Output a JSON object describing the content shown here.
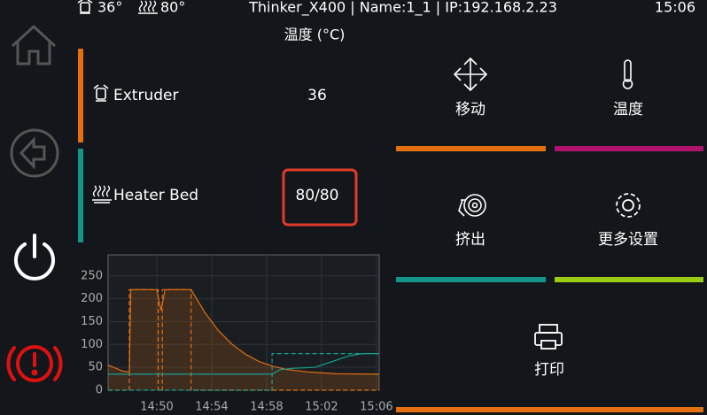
{
  "status_bar": {
    "extruder_temp": "36°",
    "bed_temp": "80°",
    "printer_info": "Thinker_X400 | Name:1_1 | IP:192.168.2.23",
    "time": "15:06"
  },
  "panel": {
    "title": "温度 (°C)",
    "heaters": [
      {
        "name": "Extruder",
        "value": "36",
        "color": "#e36f10"
      },
      {
        "name": "Heater Bed",
        "value": "80/80",
        "color": "#14948a"
      }
    ]
  },
  "chart": {
    "type": "line",
    "xlim": [
      46.45,
      66.2
    ],
    "xticks": [
      {
        "value": 50,
        "label": "14:50"
      },
      {
        "value": 54,
        "label": "14:54"
      },
      {
        "value": 58,
        "label": "14:58"
      },
      {
        "value": 62,
        "label": "15:02"
      },
      {
        "value": 66,
        "label": "15:06"
      }
    ],
    "ylim": [
      0,
      296
    ],
    "yticks": [
      0,
      50,
      100,
      150,
      200,
      250
    ],
    "grid": true,
    "series": [
      {
        "color": "#e36f10",
        "dashed": false,
        "fill": true,
        "x": [
          46.45,
          47.5,
          48.0,
          48.1,
          50.0,
          50.3,
          50.6,
          52.5,
          53.5,
          54.5,
          55.5,
          56.5,
          57.5,
          58.5,
          59.5,
          61,
          63,
          66.2
        ],
        "values": [
          55,
          42,
          40,
          220,
          220,
          175,
          220,
          220,
          170,
          130,
          100,
          78,
          62,
          52,
          45,
          40,
          36,
          35
        ]
      },
      {
        "color": "#e36f10",
        "dashed": true,
        "fill": false,
        "x": [
          46.45,
          48.0,
          48.0,
          50.1,
          50.1,
          50.4,
          50.4,
          52.5,
          52.5,
          66.2
        ],
        "values": [
          0,
          0,
          220,
          220,
          0,
          0,
          220,
          220,
          0,
          0
        ]
      },
      {
        "color": "#14a090",
        "dashed": false,
        "fill": false,
        "x": [
          46.45,
          58.4,
          59,
          60,
          61.5,
          62.5,
          64,
          65,
          66.2
        ],
        "values": [
          35,
          35,
          45,
          48,
          50,
          60,
          75,
          80,
          80
        ]
      },
      {
        "color": "#14a090",
        "dashed": true,
        "fill": false,
        "x": [
          46.45,
          58.4,
          58.4,
          66.2
        ],
        "values": [
          0,
          0,
          80,
          80
        ]
      }
    ]
  },
  "menu": [
    {
      "label": "移动",
      "color": "#e36f10"
    },
    {
      "label": "温度",
      "color": "#b0126e"
    },
    {
      "label": "挤出",
      "color": "#14948a"
    },
    {
      "label": "更多设置",
      "color": "#9ccc14"
    },
    {
      "label": "打印",
      "color": "#e36f10"
    }
  ]
}
